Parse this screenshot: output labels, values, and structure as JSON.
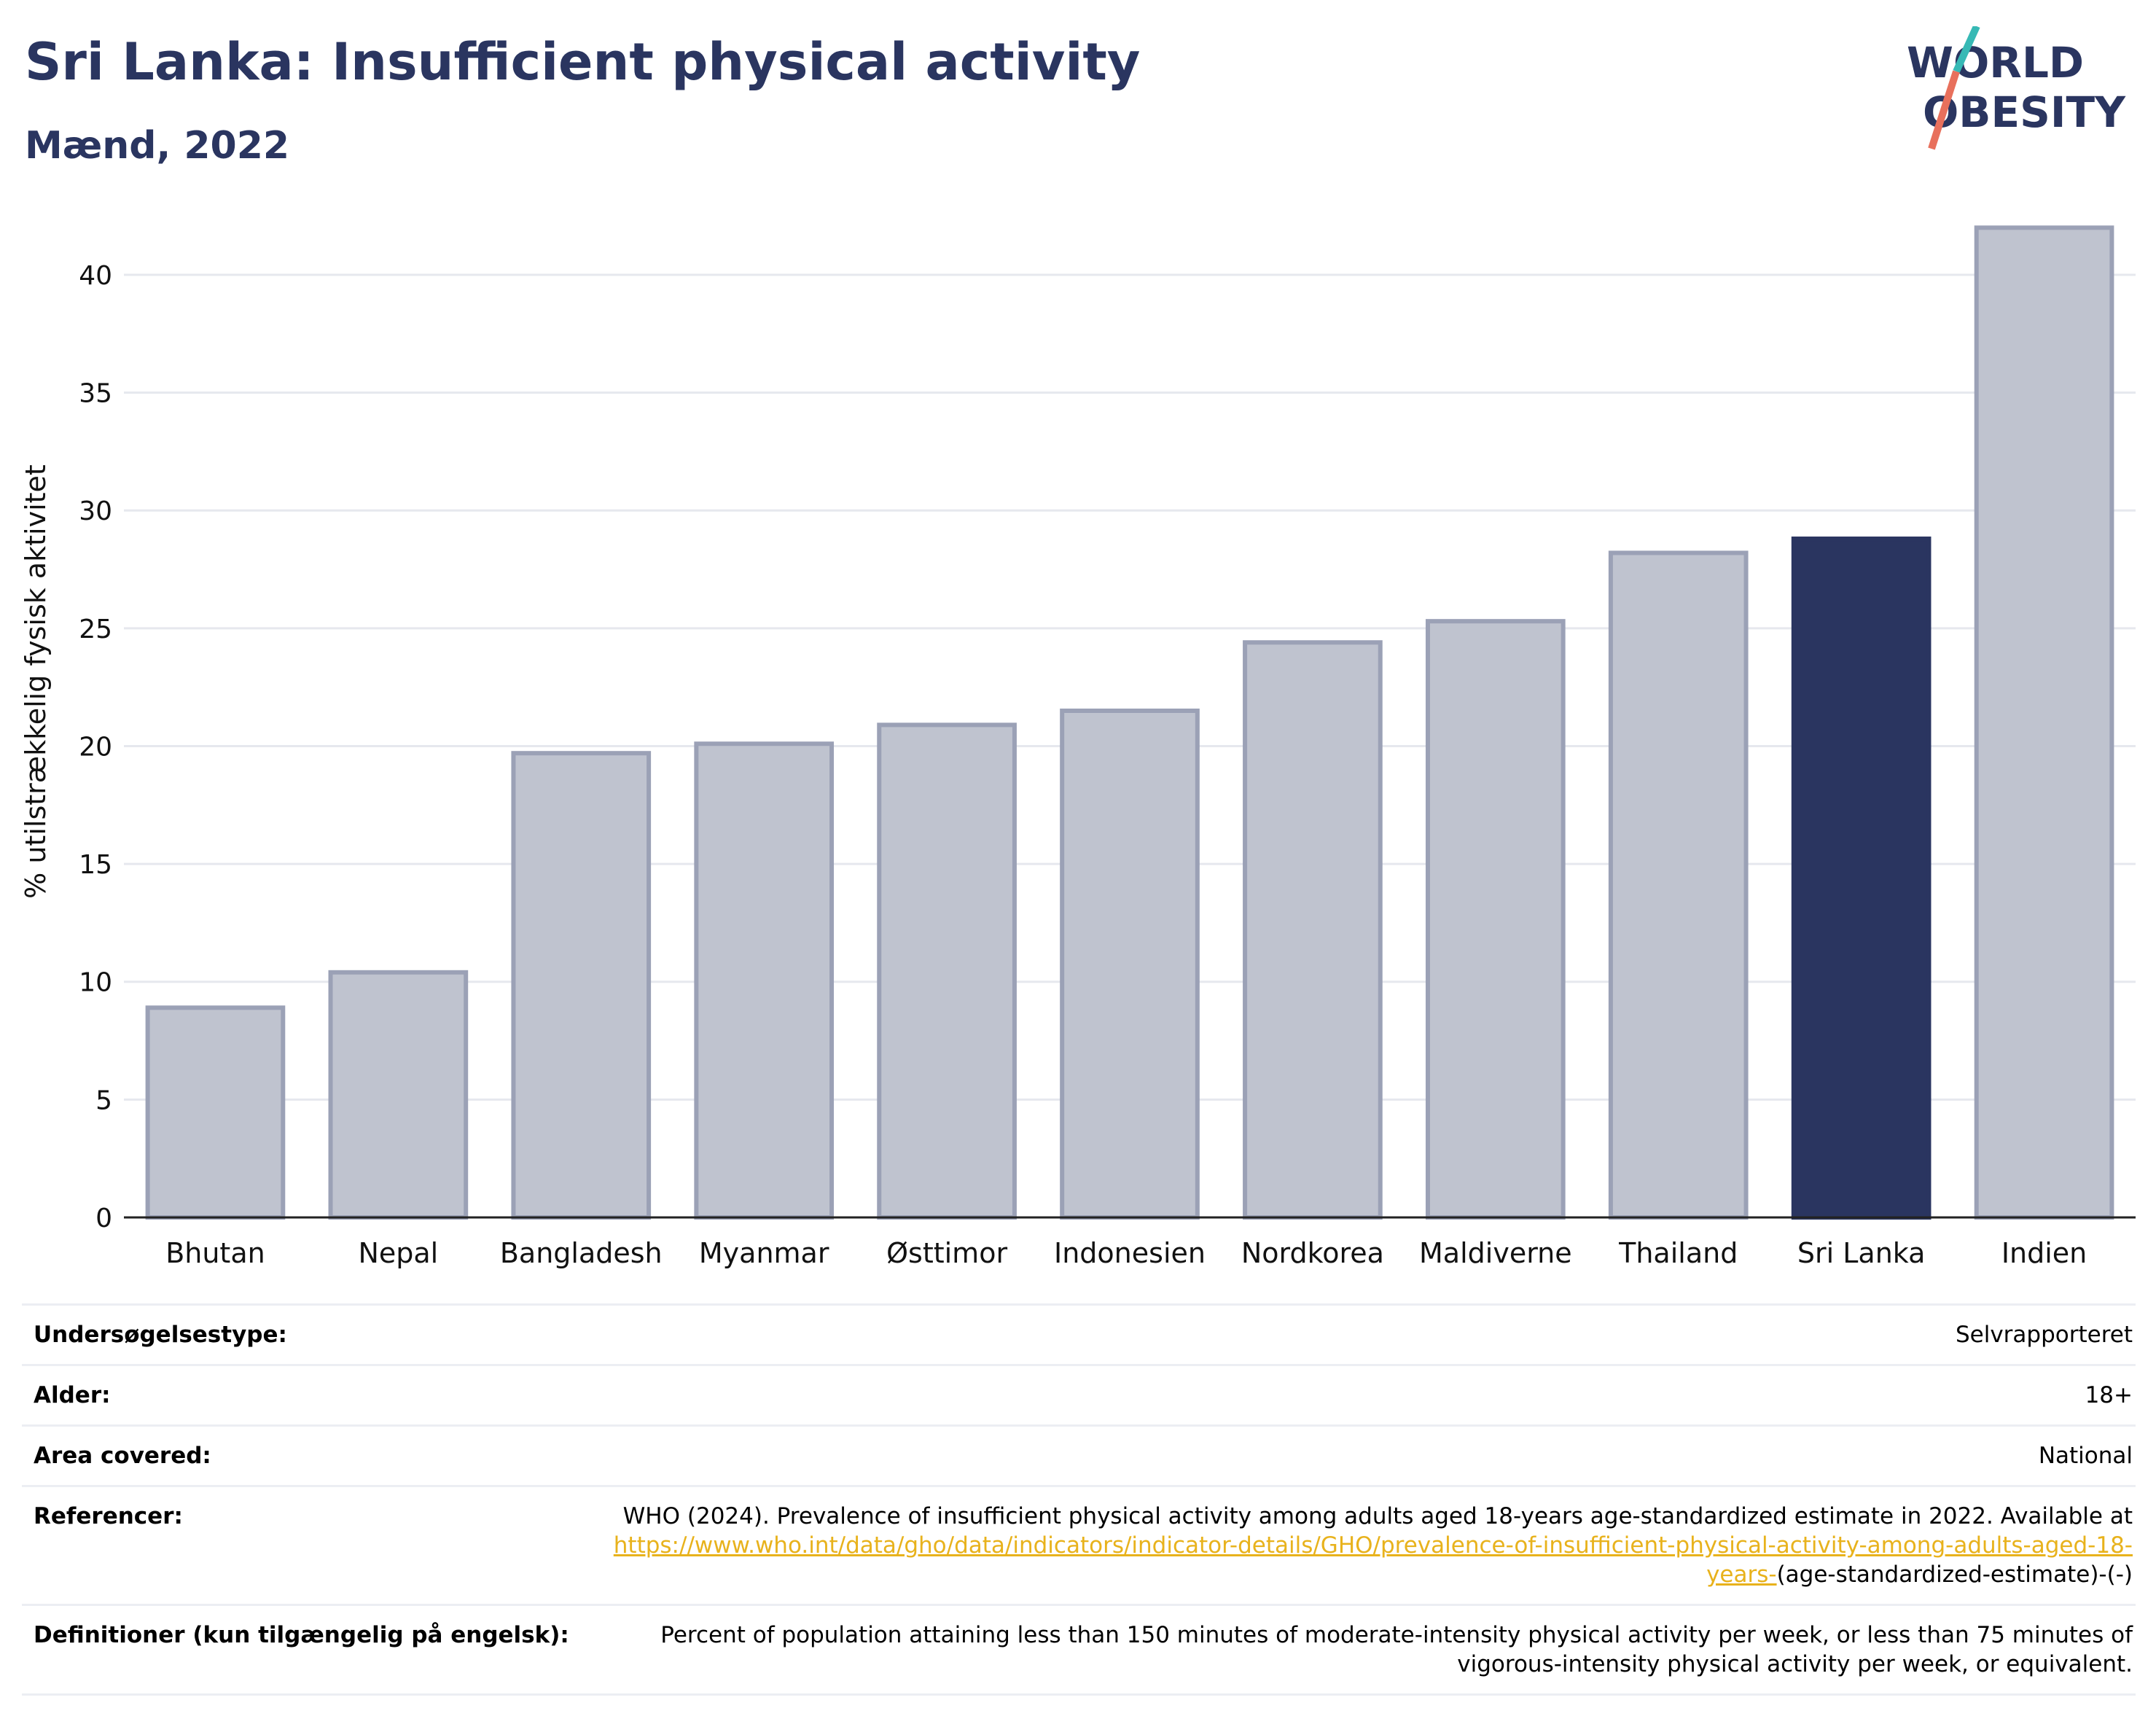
{
  "header": {
    "title": "Sri Lanka: Insufficient physical activity",
    "subtitle": "Mænd, 2022"
  },
  "logo": {
    "line1": "WORLD",
    "line2": "OBESITY",
    "colors": {
      "text": "#2a3560",
      "slash_top": "#37b9b5",
      "slash_bottom": "#e8705c"
    }
  },
  "chart_data": {
    "type": "bar",
    "categories": [
      "Bhutan",
      "Nepal",
      "Bangladesh",
      "Myanmar",
      "Østtimor",
      "Indonesien",
      "Nordkorea",
      "Maldiverne",
      "Thailand",
      "Sri Lanka",
      "Indien"
    ],
    "values": [
      8.9,
      10.4,
      19.7,
      20.1,
      20.9,
      21.5,
      24.4,
      25.3,
      28.2,
      28.8,
      42.0
    ],
    "highlight": "Sri Lanka",
    "ylabel": "% utilstrækkelig fysisk aktivitet",
    "xlabel": "",
    "ylim": [
      0,
      43
    ],
    "yticks": [
      0,
      5,
      10,
      15,
      20,
      25,
      30,
      35,
      40
    ],
    "grid": true,
    "colors": {
      "bar": "#bfc3cf",
      "bar_edge": "#9ba1b6",
      "highlight": "#2a3560",
      "grid": "#e6e8ee",
      "axis": "#222222"
    }
  },
  "info": {
    "survey_type": {
      "label": "Undersøgelsestype:",
      "value": "Selvrapporteret"
    },
    "age": {
      "label": "Alder:",
      "value": "18+"
    },
    "area": {
      "label": "Area covered:",
      "value": "National"
    },
    "references": {
      "label": "Referencer:",
      "text": "WHO (2024). Prevalence of insufficient physical activity among adults aged 18-years age-standardized estimate in 2022. Available at",
      "link": "https://www.who.int/data/gho/data/indicators/indicator-details/GHO/prevalence-of-insufficient-physical-activity-among-adults-aged-18-years-",
      "suffix": "(age-standardized-estimate)-(-)"
    },
    "definitions": {
      "label": "Definitioner (kun tilgængelig på engelsk):",
      "value": "Percent of population attaining less than 150 minutes of moderate-intensity physical activity per week, or less than 75 minutes of vigorous-intensity physical activity per week, or equivalent."
    }
  }
}
